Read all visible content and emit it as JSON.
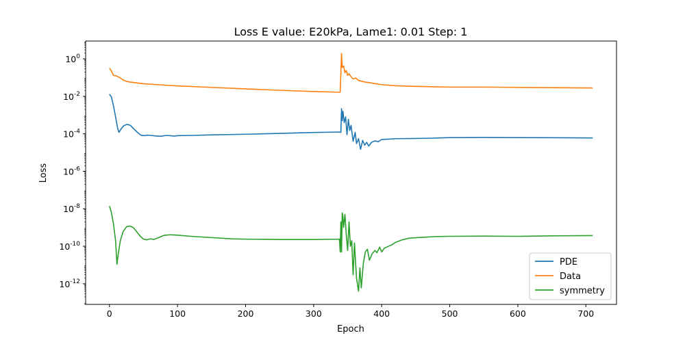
{
  "chart_data": {
    "type": "line",
    "title": "Loss E value: E20kPa, Lame1: 0.01 Step: 1",
    "xlabel": "Epoch",
    "ylabel": "Loss",
    "xlim": [
      -35,
      745
    ],
    "ylim_log10": [
      -13.1,
      0.95
    ],
    "yscale": "log",
    "xticks": [
      0,
      100,
      200,
      300,
      400,
      500,
      600,
      700
    ],
    "yticks": [
      {
        "exp": 0,
        "label": "10^0"
      },
      {
        "exp": -2,
        "label": "10^-2"
      },
      {
        "exp": -4,
        "label": "10^-4"
      },
      {
        "exp": -6,
        "label": "10^-6"
      },
      {
        "exp": -8,
        "label": "10^-8"
      },
      {
        "exp": -10,
        "label": "10^-10"
      },
      {
        "exp": -12,
        "label": "10^-12"
      }
    ],
    "grid": false,
    "legend_position": "lower right",
    "series": [
      {
        "name": "PDE",
        "color": "#1f77b4",
        "points": [
          [
            0,
            0.013
          ],
          [
            3,
            0.009
          ],
          [
            6,
            0.003
          ],
          [
            9,
            0.0008
          ],
          [
            12,
            0.0002
          ],
          [
            14,
            0.00012
          ],
          [
            17,
            0.00018
          ],
          [
            21,
            0.00027
          ],
          [
            26,
            0.00032
          ],
          [
            31,
            0.00028
          ],
          [
            36,
            0.00018
          ],
          [
            41,
            0.00012
          ],
          [
            46,
            8.5e-05
          ],
          [
            51,
            8e-05
          ],
          [
            56,
            8.5e-05
          ],
          [
            61,
            8.2e-05
          ],
          [
            66,
            7.8e-05
          ],
          [
            71,
            7.5e-05
          ],
          [
            76,
            7.4e-05
          ],
          [
            81,
            8e-05
          ],
          [
            86,
            8.2e-05
          ],
          [
            91,
            7.8e-05
          ],
          [
            96,
            7.6e-05
          ],
          [
            100,
            8e-05
          ],
          [
            120,
            8.2e-05
          ],
          [
            150,
            8.8e-05
          ],
          [
            200,
            9.5e-05
          ],
          [
            250,
            0.000105
          ],
          [
            300,
            0.000118
          ],
          [
            338,
            0.000125
          ],
          [
            340,
            0.00012
          ],
          [
            341,
            0.0022
          ],
          [
            342,
            0.0005
          ],
          [
            343,
            0.0016
          ],
          [
            345,
            0.0004
          ],
          [
            347,
            0.0008
          ],
          [
            349,
            9e-05
          ],
          [
            351,
            0.0006
          ],
          [
            353,
            0.00015
          ],
          [
            355,
            0.00028
          ],
          [
            358,
            4e-05
          ],
          [
            361,
            0.00012
          ],
          [
            363,
            3e-05
          ],
          [
            366,
            5.5e-05
          ],
          [
            369,
            1.5e-05
          ],
          [
            372,
            4.5e-05
          ],
          [
            375,
            2.5e-05
          ],
          [
            378,
            3.5e-05
          ],
          [
            381,
            2.2e-05
          ],
          [
            385,
            3.5e-05
          ],
          [
            390,
            4.2e-05
          ],
          [
            395,
            3.8e-05
          ],
          [
            400,
            5e-05
          ],
          [
            410,
            5.2e-05
          ],
          [
            420,
            5.5e-05
          ],
          [
            440,
            5.6e-05
          ],
          [
            470,
            5.8e-05
          ],
          [
            500,
            6.3e-05
          ],
          [
            550,
            6.4e-05
          ],
          [
            600,
            6.3e-05
          ],
          [
            650,
            6.2e-05
          ],
          [
            710,
            6e-05
          ]
        ]
      },
      {
        "name": "Data",
        "color": "#ff7f0e",
        "points": [
          [
            0,
            0.32
          ],
          [
            3,
            0.22
          ],
          [
            6,
            0.13
          ],
          [
            10,
            0.125
          ],
          [
            15,
            0.1
          ],
          [
            20,
            0.075
          ],
          [
            25,
            0.063
          ],
          [
            30,
            0.058
          ],
          [
            40,
            0.052
          ],
          [
            50,
            0.047
          ],
          [
            70,
            0.042
          ],
          [
            100,
            0.036
          ],
          [
            150,
            0.03
          ],
          [
            200,
            0.025
          ],
          [
            250,
            0.021
          ],
          [
            300,
            0.018
          ],
          [
            339,
            0.0165
          ],
          [
            341,
            1.9
          ],
          [
            342,
            0.35
          ],
          [
            344,
            0.42
          ],
          [
            346,
            0.18
          ],
          [
            348,
            0.24
          ],
          [
            350,
            0.13
          ],
          [
            352,
            0.16
          ],
          [
            355,
            0.11
          ],
          [
            358,
            0.085
          ],
          [
            362,
            0.095
          ],
          [
            366,
            0.07
          ],
          [
            370,
            0.065
          ],
          [
            375,
            0.058
          ],
          [
            380,
            0.055
          ],
          [
            390,
            0.048
          ],
          [
            400,
            0.042
          ],
          [
            420,
            0.037
          ],
          [
            450,
            0.034
          ],
          [
            500,
            0.031
          ],
          [
            550,
            0.031
          ],
          [
            600,
            0.03
          ],
          [
            650,
            0.029
          ],
          [
            710,
            0.028
          ]
        ]
      },
      {
        "name": "symmetry",
        "color": "#2ca02c",
        "points": [
          [
            0,
            1.4e-08
          ],
          [
            3,
            6e-09
          ],
          [
            6,
            1.5e-09
          ],
          [
            9,
            2e-10
          ],
          [
            11,
            1.1e-11
          ],
          [
            13,
            4e-11
          ],
          [
            16,
            2e-10
          ],
          [
            20,
            6e-10
          ],
          [
            25,
            1.1e-09
          ],
          [
            30,
            1.2e-09
          ],
          [
            35,
            1e-09
          ],
          [
            40,
            6e-10
          ],
          [
            45,
            3.5e-10
          ],
          [
            50,
            2.4e-10
          ],
          [
            55,
            2.2e-10
          ],
          [
            60,
            2.5e-10
          ],
          [
            65,
            2.3e-10
          ],
          [
            70,
            2.7e-10
          ],
          [
            75,
            3.2e-10
          ],
          [
            80,
            3.8e-10
          ],
          [
            85,
            4e-10
          ],
          [
            90,
            4.1e-10
          ],
          [
            95,
            4e-10
          ],
          [
            100,
            3.9e-10
          ],
          [
            120,
            3.4e-10
          ],
          [
            150,
            2.9e-10
          ],
          [
            180,
            2.5e-10
          ],
          [
            200,
            2.4e-10
          ],
          [
            250,
            2.3e-10
          ],
          [
            300,
            2.3e-10
          ],
          [
            338,
            2.4e-10
          ],
          [
            339,
            5e-11
          ],
          [
            340,
            2e-09
          ],
          [
            341,
            5e-11
          ],
          [
            342,
            6e-09
          ],
          [
            343,
            4e-09
          ],
          [
            344,
            1e-09
          ],
          [
            346,
            5e-09
          ],
          [
            348,
            4e-10
          ],
          [
            350,
            6e-11
          ],
          [
            352,
            2e-09
          ],
          [
            354,
            1e-10
          ],
          [
            356,
            2e-10
          ],
          [
            358,
            3e-12
          ],
          [
            360,
            1.5e-10
          ],
          [
            363,
            2e-12
          ],
          [
            366,
            4e-13
          ],
          [
            368,
            7e-12
          ],
          [
            370,
            6e-13
          ],
          [
            373,
            1.2e-11
          ],
          [
            376,
            5e-11
          ],
          [
            379,
            7e-11
          ],
          [
            382,
            1.8e-11
          ],
          [
            386,
            4e-11
          ],
          [
            390,
            6e-11
          ],
          [
            393,
            4.5e-11
          ],
          [
            397,
            9e-11
          ],
          [
            400,
            5e-11
          ],
          [
            404,
            8e-11
          ],
          [
            410,
            1e-10
          ],
          [
            415,
            1.2e-10
          ],
          [
            420,
            1.6e-10
          ],
          [
            430,
            2.2e-10
          ],
          [
            440,
            2.7e-10
          ],
          [
            460,
            3e-10
          ],
          [
            480,
            3.3e-10
          ],
          [
            500,
            3.4e-10
          ],
          [
            550,
            3.5e-10
          ],
          [
            600,
            3.4e-10
          ],
          [
            650,
            3.6e-10
          ],
          [
            710,
            3.7e-10
          ]
        ]
      }
    ]
  }
}
